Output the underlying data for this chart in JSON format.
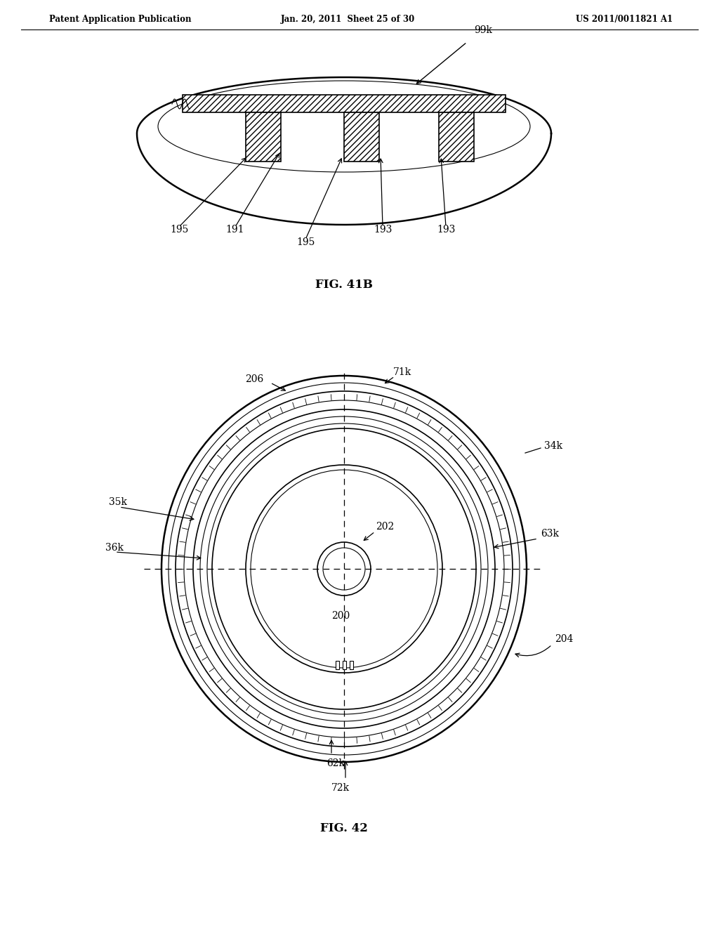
{
  "bg_color": "#ffffff",
  "line_color": "#000000",
  "header_left": "Patent Application Publication",
  "header_mid": "Jan. 20, 2011  Sheet 25 of 30",
  "header_right": "US 2011/0011821 A1",
  "fig41b_label": "FIG. 41B",
  "fig42_label": "FIG. 42",
  "label_99k": "99k",
  "label_195a": "195",
  "label_191": "191",
  "label_195b": "195",
  "label_193a": "193",
  "label_193b": "193",
  "label_206": "206",
  "label_71k": "71k",
  "label_34k": "34k",
  "label_35k": "35k",
  "label_36k": "36k",
  "label_63k": "63k",
  "label_202": "202",
  "label_200": "200",
  "label_204": "204",
  "label_62k": "62k",
  "label_72k": "72k"
}
